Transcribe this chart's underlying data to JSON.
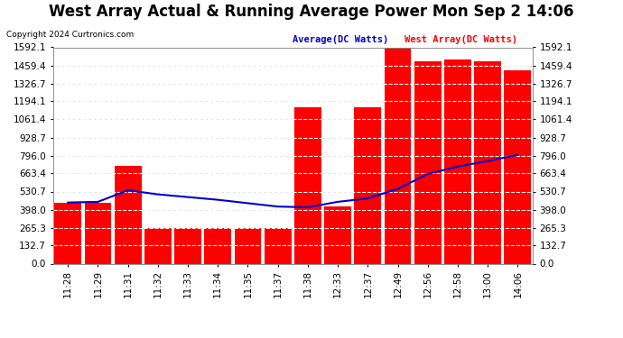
{
  "title": "West Array Actual & Running Average Power Mon Sep 2 14:06",
  "copyright": "Copyright 2024 Curtronics.com",
  "legend_avg": "Average(DC Watts)",
  "legend_west": "West Array(DC Watts)",
  "x_labels": [
    "11:28",
    "11:29",
    "11:31",
    "11:32",
    "11:33",
    "11:34",
    "11:35",
    "11:37",
    "11:38",
    "12:33",
    "12:37",
    "12:49",
    "12:56",
    "12:58",
    "13:00",
    "14:06"
  ],
  "bar_values": [
    450,
    450,
    720,
    265,
    265,
    265,
    265,
    265,
    1150,
    420,
    1150,
    1592,
    1490,
    1500,
    1490,
    1420
  ],
  "avg_values": [
    450,
    455,
    540,
    510,
    490,
    470,
    445,
    420,
    415,
    455,
    480,
    550,
    660,
    715,
    755,
    800
  ],
  "ylim": [
    0,
    1592.1
  ],
  "yticks": [
    0.0,
    132.7,
    265.3,
    398.0,
    530.7,
    663.4,
    796.0,
    928.7,
    1061.4,
    1194.1,
    1326.7,
    1459.4,
    1592.1
  ],
  "bar_color": "#ff0000",
  "avg_line_color": "#0000cc",
  "bg_color": "#ffffff",
  "plot_bg": "#ffffff",
  "grid_color_h": "#cccccc",
  "grid_color_v": "#cccccc",
  "title_fontsize": 12,
  "label_fontsize": 7.5
}
